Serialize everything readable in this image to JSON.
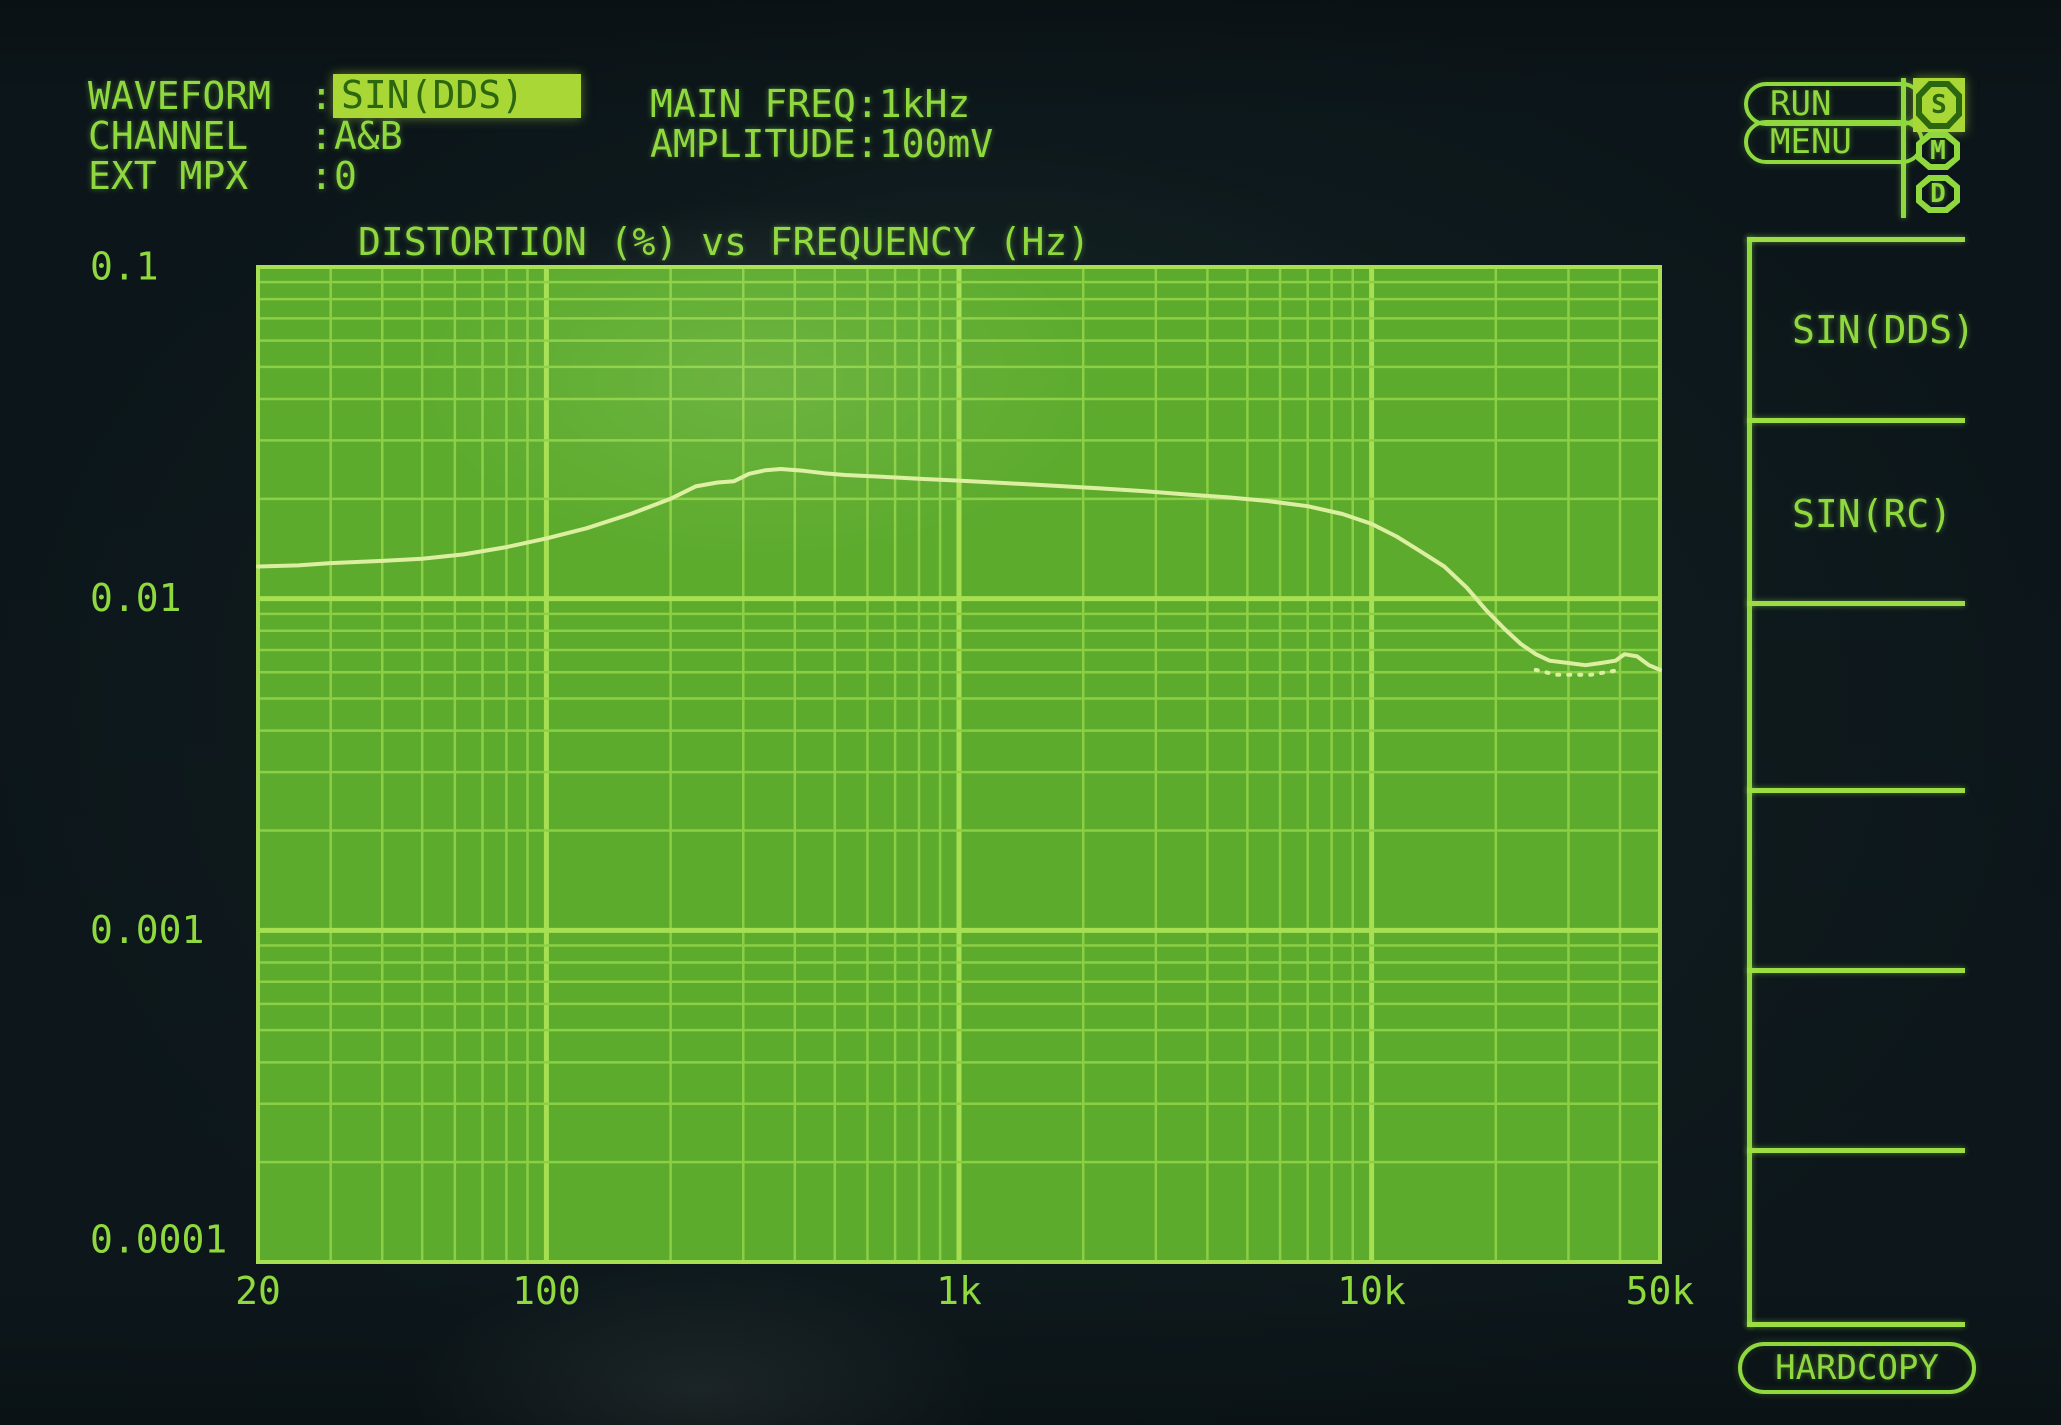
{
  "palette": {
    "bg": "#0c161a",
    "text": "#8fd93e",
    "plot_fill": "#5cab2d",
    "grid_minor": "#8ccf45",
    "grid_major": "#a6e052",
    "trace": "#dcefa0",
    "highlight_bg": "#a9d836",
    "highlight_text": "#2c660f"
  },
  "header": {
    "fields": [
      {
        "label": "WAVEFORM",
        "colon": ":",
        "value": "SIN(DDS)",
        "highlighted": true
      },
      {
        "label": "CHANNEL",
        "colon": ":",
        "value": "A&B",
        "highlighted": false
      },
      {
        "label": "EXT MPX",
        "colon": ":",
        "value": "0",
        "highlighted": false
      }
    ],
    "params": [
      {
        "text": "MAIN FREQ:1kHz"
      },
      {
        "text": "AMPLITUDE:100mV"
      }
    ]
  },
  "controls": {
    "run_label": "RUN",
    "menu_label": "MENU",
    "badges": [
      {
        "letter": "S",
        "active": true
      },
      {
        "letter": "M",
        "active": false
      },
      {
        "letter": "D",
        "active": false
      }
    ],
    "hardcopy_label": "HARDCOPY"
  },
  "softkeys": [
    "SIN(DDS)",
    "SIN(RC)",
    "",
    "",
    "",
    ""
  ],
  "chart_data": {
    "type": "line",
    "title": "DISTORTION (%) vs FREQUENCY (Hz)",
    "xlabel": "FREQUENCY (Hz)",
    "ylabel": "DISTORTION (%)",
    "xscale": "log",
    "yscale": "log",
    "xlim": [
      20,
      50000
    ],
    "ylim": [
      0.0001,
      0.1
    ],
    "grid": "log-minor-and-major",
    "x_ticks": [
      {
        "v": 20,
        "label": "20"
      },
      {
        "v": 100,
        "label": "100"
      },
      {
        "v": 1000,
        "label": "1k"
      },
      {
        "v": 10000,
        "label": "10k"
      },
      {
        "v": 50000,
        "label": "50k"
      }
    ],
    "y_ticks": [
      {
        "v": 0.1,
        "label": "0.1"
      },
      {
        "v": 0.01,
        "label": "0.01"
      },
      {
        "v": 0.001,
        "label": "0.001"
      },
      {
        "v": 0.0001,
        "label": "0.0001"
      }
    ],
    "series": [
      {
        "name": "distortion-vs-frequency",
        "style": "solid",
        "points": [
          [
            20,
            0.0125
          ],
          [
            25,
            0.0126
          ],
          [
            30,
            0.0128
          ],
          [
            40,
            0.013
          ],
          [
            50,
            0.0132
          ],
          [
            63,
            0.0136
          ],
          [
            80,
            0.0143
          ],
          [
            100,
            0.0152
          ],
          [
            125,
            0.0163
          ],
          [
            160,
            0.018
          ],
          [
            200,
            0.02
          ],
          [
            230,
            0.0218
          ],
          [
            260,
            0.0224
          ],
          [
            285,
            0.0226
          ],
          [
            310,
            0.0238
          ],
          [
            340,
            0.0244
          ],
          [
            370,
            0.0246
          ],
          [
            420,
            0.0243
          ],
          [
            470,
            0.0239
          ],
          [
            530,
            0.0236
          ],
          [
            650,
            0.0233
          ],
          [
            800,
            0.023
          ],
          [
            1000,
            0.0227
          ],
          [
            1300,
            0.0223
          ],
          [
            1700,
            0.0219
          ],
          [
            2200,
            0.0215
          ],
          [
            2800,
            0.0211
          ],
          [
            3600,
            0.0206
          ],
          [
            4500,
            0.0202
          ],
          [
            5600,
            0.0197
          ],
          [
            7000,
            0.019
          ],
          [
            8500,
            0.018
          ],
          [
            10000,
            0.0168
          ],
          [
            11500,
            0.0154
          ],
          [
            13000,
            0.014
          ],
          [
            15000,
            0.0125
          ],
          [
            17000,
            0.0108
          ],
          [
            19000,
            0.0092
          ],
          [
            21000,
            0.0081
          ],
          [
            23000,
            0.0073
          ],
          [
            25000,
            0.0068
          ],
          [
            27000,
            0.0065
          ],
          [
            30000,
            0.0064
          ],
          [
            33000,
            0.0063
          ],
          [
            36000,
            0.0064
          ],
          [
            39000,
            0.0065
          ],
          [
            41000,
            0.0068
          ],
          [
            44000,
            0.0067
          ],
          [
            47000,
            0.0063
          ],
          [
            50000,
            0.0061
          ]
        ]
      },
      {
        "name": "distortion-secondary-dotted",
        "style": "dotted",
        "points": [
          [
            25000,
            0.0061
          ],
          [
            28000,
            0.0059
          ],
          [
            31000,
            0.0059
          ],
          [
            34000,
            0.0059
          ],
          [
            37000,
            0.006
          ],
          [
            40000,
            0.0061
          ]
        ]
      }
    ]
  }
}
